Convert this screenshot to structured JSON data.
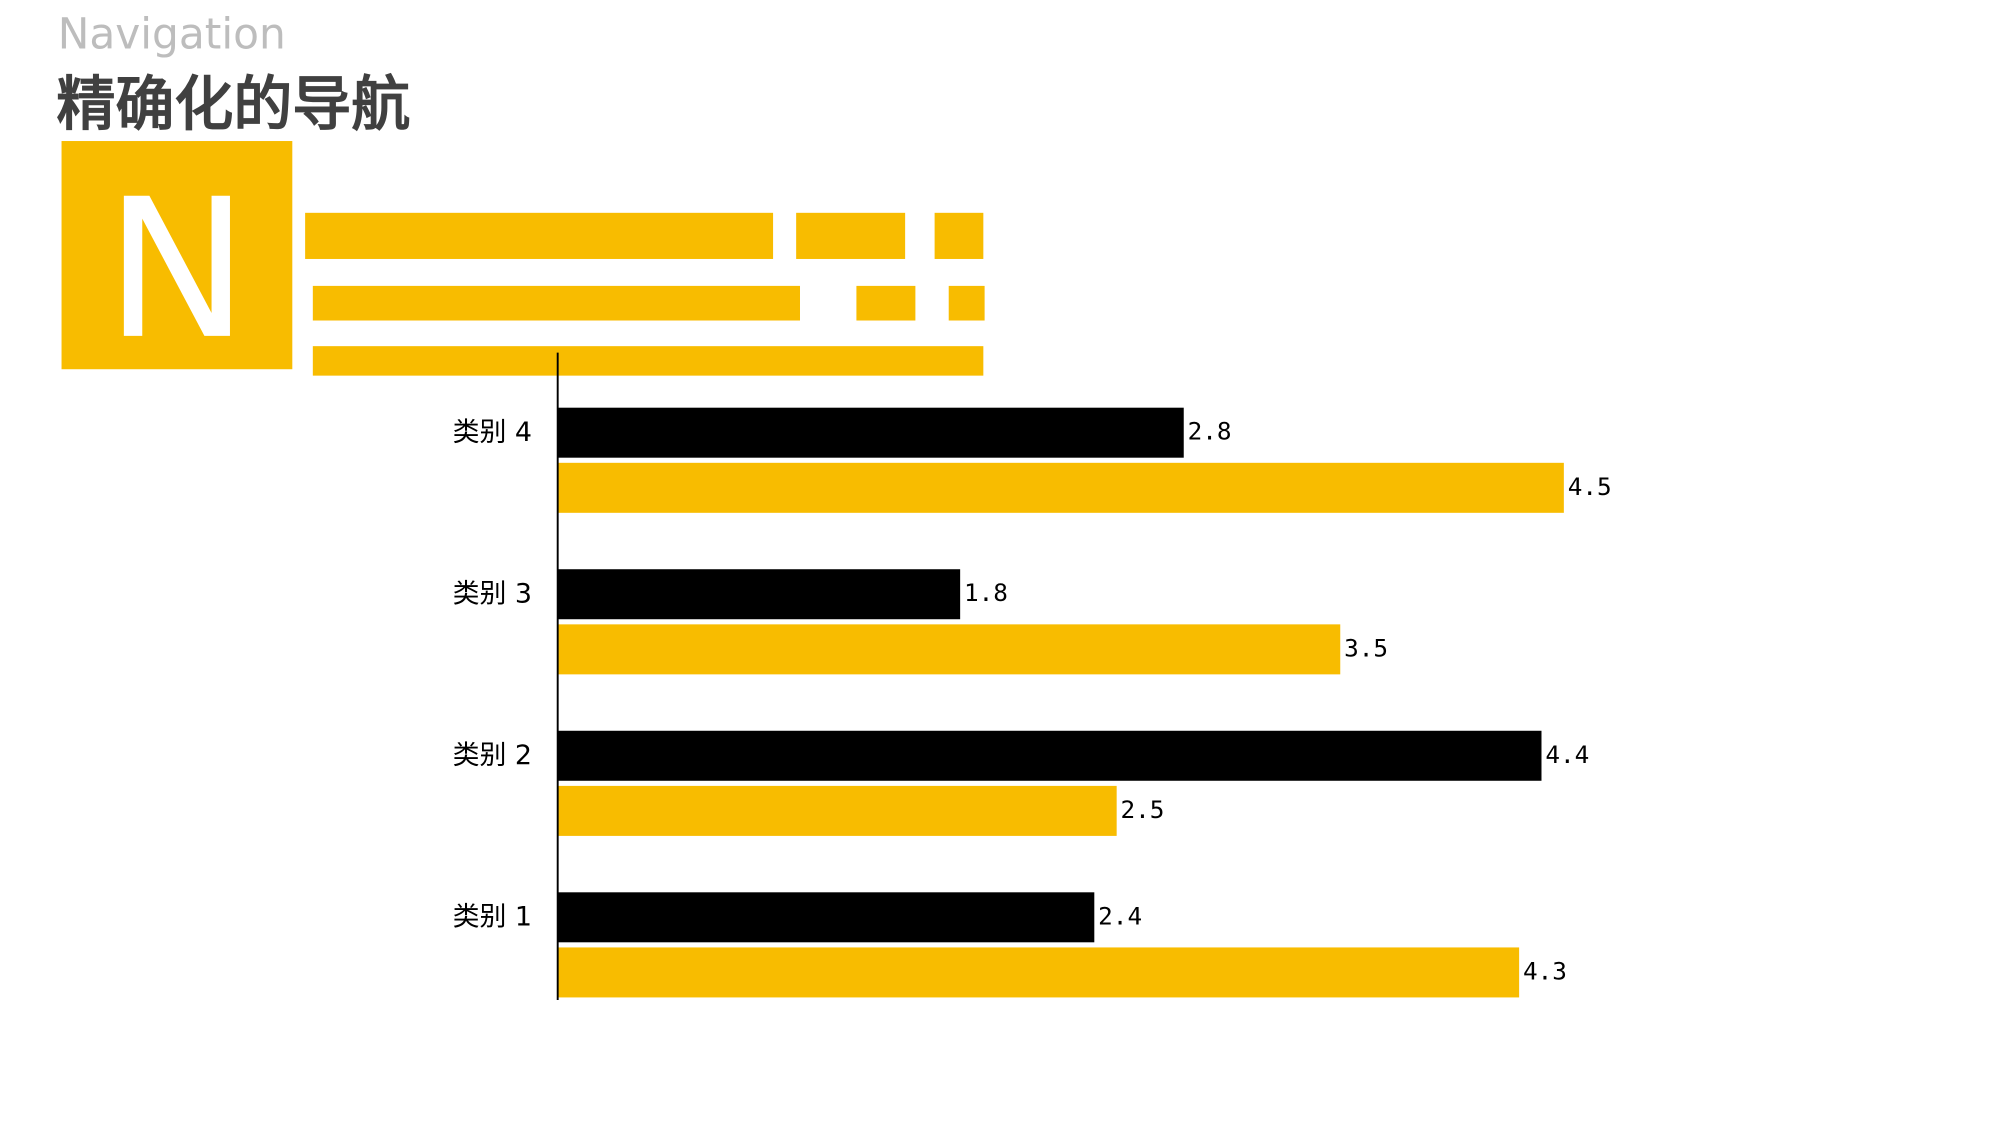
{
  "slide": {
    "subtitle": "Navigation",
    "title": "精确化的导航",
    "badge": "N"
  },
  "chart_data": {
    "type": "bar",
    "orientation": "horizontal",
    "categories": [
      "类别 1",
      "类别 2",
      "类别 3",
      "类别 4"
    ],
    "series": [
      {
        "color": "#000000",
        "values": [
          2.4,
          4.4,
          1.8,
          2.8
        ]
      },
      {
        "color": "#f8bc00",
        "values": [
          4.3,
          2.5,
          3.5,
          4.5
        ]
      }
    ],
    "xlim": [
      0,
      5
    ],
    "grid": false,
    "data_labels": true
  }
}
